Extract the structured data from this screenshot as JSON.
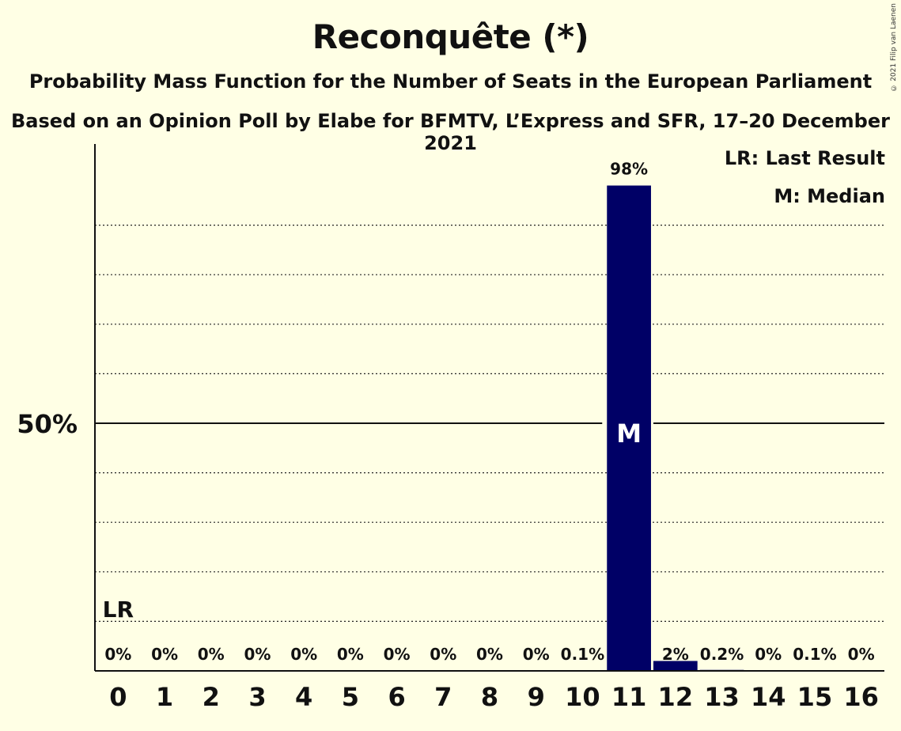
{
  "header": {
    "title": "Reconquête (*)",
    "subtitle": "Probability Mass Function for the Number of Seats in the European Parliament",
    "subtitle2": "Based on an Opinion Poll by Elabe for BFMTV, L’Express and SFR, 17–20 December 2021",
    "copyright": "© 2021 Filip van Laenen"
  },
  "legend": {
    "last_result": "LR: Last Result",
    "median": "M: Median"
  },
  "colors": {
    "bar": "#000066",
    "background": "#FFFFE5"
  },
  "chart_data": {
    "type": "bar",
    "categories": [
      "0",
      "1",
      "2",
      "3",
      "4",
      "5",
      "6",
      "7",
      "8",
      "9",
      "10",
      "11",
      "12",
      "13",
      "14",
      "15",
      "16"
    ],
    "values": [
      0,
      0,
      0,
      0,
      0,
      0,
      0,
      0,
      0,
      0,
      0.1,
      98,
      2,
      0.2,
      0,
      0.1,
      0
    ],
    "value_labels": [
      "0%",
      "0%",
      "0%",
      "0%",
      "0%",
      "0%",
      "0%",
      "0%",
      "0%",
      "0%",
      "0.1%",
      "98%",
      "2%",
      "0.2%",
      "0%",
      "0.1%",
      "0%"
    ],
    "ylim": [
      0,
      106
    ],
    "yticks": [
      {
        "value": 50,
        "label": "50%"
      }
    ],
    "gridlines": [
      10,
      20,
      30,
      40,
      60,
      70,
      80,
      90
    ],
    "last_result": {
      "seat": 0,
      "label": "LR"
    },
    "median": {
      "seat": 11,
      "label": "M"
    }
  }
}
